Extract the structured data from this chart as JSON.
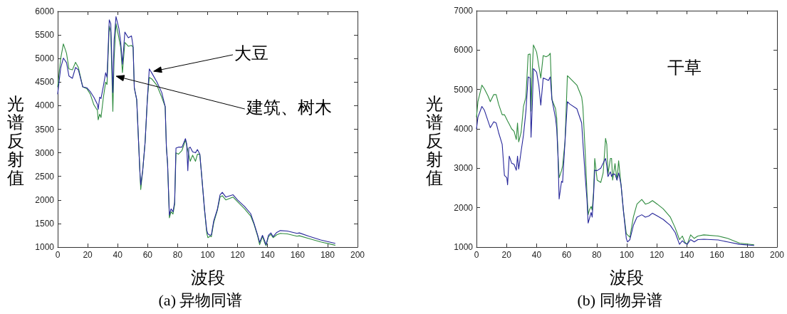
{
  "chart_data": [
    {
      "type": "line",
      "title": "(a) 异物同谱",
      "xlabel": "波段",
      "ylabel": "光谱反射值",
      "xlim": [
        0,
        200
      ],
      "xticks": [
        0,
        20,
        40,
        60,
        80,
        100,
        120,
        140,
        160,
        180,
        200
      ],
      "ylim": [
        1000,
        6000
      ],
      "yticks": [
        1000,
        1500,
        2000,
        2500,
        3000,
        3500,
        4000,
        4500,
        5000,
        5500,
        6000
      ],
      "marker": "none",
      "line_style": "solid",
      "annotations": [
        "大豆",
        "建筑、树木"
      ],
      "series": [
        {
          "color": "#2e8b3e",
          "x": [
            0,
            2,
            3.8,
            5.9,
            7.5,
            9.8,
            11.9,
            13.8,
            16.7,
            19.4,
            21.7,
            24.1,
            26.5,
            27,
            28,
            28.9,
            30.5,
            32,
            32.9,
            34.4,
            35.4,
            36.8,
            37.6,
            38.9,
            40.8,
            42,
            43.2,
            44.8,
            47.1,
            49.2,
            50.3,
            51.1,
            52.7,
            54.8,
            55.4,
            56.7,
            58.3,
            59.8,
            61.1,
            63,
            66.2,
            69.4,
            71.7,
            72.5,
            73.3,
            74.5,
            75.6,
            76.9,
            78,
            78.9,
            80.5,
            82.9,
            85.2,
            86.5,
            88.4,
            90,
            91.9,
            93.2,
            94.8,
            96.3,
            97.9,
            99.4,
            100.2,
            101.7,
            102.5,
            104.1,
            106.5,
            108.3,
            109.8,
            112.2,
            117,
            120,
            124.7,
            128.7,
            131,
            133.4,
            134.7,
            136.6,
            138.2,
            139,
            140.6,
            142.2,
            143.7,
            146.1,
            148.5,
            153.2,
            159.6,
            161.2,
            167.5,
            175.4,
            185
          ],
          "values": [
            4400,
            5000,
            5310,
            5110,
            4780,
            4760,
            4920,
            4810,
            4400,
            4360,
            4250,
            4020,
            3900,
            3700,
            3820,
            3750,
            4180,
            4500,
            4450,
            5690,
            5560,
            3880,
            4980,
            5740,
            5440,
            5240,
            4700,
            5340,
            5260,
            5280,
            5240,
            4380,
            4130,
            2620,
            2220,
            2620,
            3220,
            4130,
            4600,
            4560,
            4430,
            4180,
            3980,
            3120,
            2770,
            1620,
            1750,
            1700,
            1900,
            3000,
            2970,
            3050,
            3270,
            3100,
            2820,
            2950,
            2820,
            2970,
            2970,
            2420,
            1810,
            1300,
            1200,
            1230,
            1220,
            1520,
            1780,
            2060,
            2090,
            2000,
            2060,
            1960,
            1810,
            1660,
            1480,
            1230,
            1050,
            1230,
            1080,
            1030,
            1220,
            1270,
            1200,
            1260,
            1290,
            1280,
            1230,
            1240,
            1180,
            1110,
            1040
          ]
        },
        {
          "color": "#26269a",
          "x": [
            0,
            2,
            3.8,
            5.9,
            7.5,
            9.8,
            11.9,
            13.8,
            16.7,
            19.4,
            21.7,
            24.1,
            26.5,
            27,
            28,
            28.9,
            30.5,
            32,
            32.9,
            34.4,
            35.4,
            36.8,
            37.6,
            38.9,
            40.8,
            42,
            43.2,
            44.8,
            47.1,
            49.2,
            50.3,
            51.1,
            52.7,
            54.8,
            55.4,
            56.7,
            58.3,
            59.8,
            61.1,
            63,
            66.2,
            69.4,
            71.7,
            72.5,
            73.3,
            74.5,
            75.6,
            76.9,
            78,
            78.9,
            80.5,
            82.9,
            85.2,
            86,
            86.8,
            87.5,
            88.4,
            90,
            91.9,
            93.2,
            94.8,
            96.3,
            97.9,
            99.4,
            100.2,
            101.7,
            102.5,
            104.1,
            106.5,
            108.3,
            109.8,
            112.2,
            117,
            120,
            124.7,
            128.7,
            131,
            133.4,
            134.7,
            136.6,
            138.2,
            139,
            140.6,
            142.2,
            143.7,
            146.1,
            148.5,
            153.2,
            159.6,
            161.2,
            167.5,
            175.4,
            185
          ],
          "values": [
            4250,
            4800,
            5010,
            4910,
            4630,
            4580,
            4810,
            4760,
            4400,
            4380,
            4300,
            4180,
            4030,
            3920,
            4180,
            4150,
            4420,
            4700,
            4600,
            5820,
            5740,
            4280,
            5380,
            5890,
            5640,
            5360,
            4880,
            5560,
            5440,
            5480,
            5260,
            4380,
            4130,
            2620,
            2320,
            2620,
            3220,
            4130,
            4780,
            4680,
            4500,
            4280,
            3980,
            3120,
            2770,
            1680,
            1810,
            1750,
            1950,
            3100,
            3120,
            3120,
            3300,
            3200,
            2620,
            3100,
            3120,
            3020,
            3000,
            3070,
            2970,
            2420,
            1810,
            1360,
            1280,
            1250,
            1260,
            1560,
            1800,
            2110,
            2160,
            2060,
            2110,
            2000,
            1860,
            1710,
            1500,
            1250,
            1100,
            1250,
            1120,
            1050,
            1250,
            1300,
            1220,
            1310,
            1350,
            1340,
            1290,
            1300,
            1230,
            1150,
            1080
          ]
        }
      ]
    },
    {
      "type": "line",
      "title": "(b) 同物异谱",
      "xlabel": "波段",
      "ylabel": "光谱反射值",
      "xlim": [
        0,
        200
      ],
      "xticks": [
        0,
        20,
        40,
        60,
        80,
        100,
        120,
        140,
        160,
        180,
        200
      ],
      "ylim": [
        1000,
        7000
      ],
      "yticks": [
        1000,
        2000,
        3000,
        4000,
        5000,
        6000,
        7000
      ],
      "marker": "none",
      "line_style": "solid",
      "annotations": [
        "干草"
      ],
      "series": [
        {
          "color": "#2e8b3e",
          "x": [
            0,
            1,
            3.6,
            5.2,
            7.6,
            9.2,
            11.5,
            13.1,
            14.7,
            17.1,
            18.6,
            20.2,
            20.7,
            21.8,
            23.4,
            25,
            26.5,
            27.3,
            28.1,
            29.7,
            31.3,
            32.9,
            34.4,
            35.7,
            36.3,
            37.1,
            37.9,
            40,
            41.5,
            42.8,
            44.4,
            46.3,
            47.9,
            49.1,
            50.2,
            52.6,
            53.4,
            54.2,
            55,
            56.6,
            57.3,
            58.9,
            60.5,
            62.1,
            66.8,
            70,
            70.8,
            72.4,
            73.5,
            74.3,
            75.1,
            76.3,
            77,
            77.9,
            78.7,
            80.3,
            82.7,
            84.3,
            85.9,
            86.7,
            87.5,
            89.1,
            89.9,
            90.6,
            92.2,
            93.5,
            94.6,
            96.2,
            97.8,
            99.7,
            100.5,
            102.1,
            104.4,
            106.8,
            110,
            112.4,
            114.8,
            117.1,
            120.3,
            124.3,
            129,
            132.2,
            135.1,
            137,
            138.6,
            140.2,
            142.5,
            144.9,
            147.3,
            151.3,
            160.8,
            167.1,
            175.1,
            184.6
          ],
          "values": [
            4300,
            4700,
            5110,
            5020,
            4840,
            4690,
            4870,
            4870,
            4630,
            4360,
            4360,
            4240,
            4200,
            4120,
            4000,
            3940,
            3730,
            4150,
            3670,
            3910,
            4570,
            4810,
            5890,
            5900,
            4450,
            5470,
            6130,
            5950,
            5590,
            5290,
            5860,
            5830,
            5860,
            5920,
            4750,
            4510,
            4270,
            3370,
            2760,
            2940,
            3060,
            3670,
            5350,
            5290,
            5110,
            4810,
            4570,
            3370,
            2400,
            1820,
            1940,
            2030,
            1940,
            2400,
            3250,
            2700,
            2640,
            2880,
            3760,
            3610,
            2850,
            3250,
            3250,
            2700,
            3120,
            2700,
            3190,
            2580,
            1920,
            1340,
            1310,
            1250,
            1760,
            2090,
            2210,
            2090,
            2120,
            2180,
            2090,
            1970,
            1760,
            1490,
            1190,
            1280,
            1130,
            1070,
            1310,
            1220,
            1280,
            1310,
            1280,
            1220,
            1100,
            1060
          ]
        },
        {
          "color": "#26269a",
          "x": [
            0,
            1,
            3.6,
            5.2,
            7.6,
            9.2,
            11.5,
            13.1,
            14.7,
            17.1,
            18.6,
            20.2,
            20.7,
            21.8,
            23.4,
            25,
            26.5,
            27.3,
            28.1,
            29.7,
            31.3,
            32.9,
            34.4,
            35.7,
            36.3,
            37.1,
            37.9,
            40,
            41.5,
            42.8,
            44.4,
            46.3,
            47.9,
            49.1,
            50.2,
            52.6,
            53.4,
            54.2,
            55,
            56.6,
            57.3,
            58.9,
            60.5,
            62.1,
            66.8,
            70,
            70.8,
            72.4,
            73.5,
            74.3,
            76.3,
            77,
            77.9,
            78.7,
            80.3,
            82.7,
            84.3,
            85.9,
            86.7,
            87.5,
            89.1,
            89.9,
            90.6,
            92.2,
            93.5,
            94.6,
            96.2,
            97.8,
            99.7,
            100.5,
            102.1,
            104.4,
            106.8,
            110,
            112.4,
            114.8,
            117.1,
            120.3,
            124.3,
            129,
            132.2,
            135.1,
            137,
            138.6,
            140.2,
            142.5,
            144.9,
            147.3,
            151.3,
            160.8,
            167.1,
            175.1,
            184.6
          ],
          "values": [
            4000,
            4300,
            4570,
            4480,
            4210,
            4030,
            4180,
            4150,
            3910,
            3610,
            2820,
            2760,
            2580,
            3310,
            3130,
            3100,
            2950,
            3310,
            2980,
            3430,
            3850,
            4450,
            5320,
            5290,
            3790,
            4540,
            5530,
            5440,
            5110,
            4600,
            5290,
            5260,
            5230,
            5320,
            4750,
            4270,
            4000,
            3370,
            2220,
            2670,
            2640,
            3670,
            4690,
            4630,
            4510,
            4150,
            3670,
            2760,
            2220,
            1610,
            1880,
            1760,
            2300,
            2950,
            2940,
            3000,
            3130,
            3250,
            3060,
            2790,
            2910,
            2790,
            2850,
            2850,
            2700,
            2880,
            2580,
            1920,
            1220,
            1130,
            1190,
            1550,
            1760,
            1820,
            1760,
            1790,
            1860,
            1790,
            1700,
            1550,
            1370,
            1070,
            1160,
            1100,
            1070,
            1190,
            1130,
            1190,
            1200,
            1180,
            1130,
            1070,
            1040
          ]
        }
      ]
    }
  ]
}
